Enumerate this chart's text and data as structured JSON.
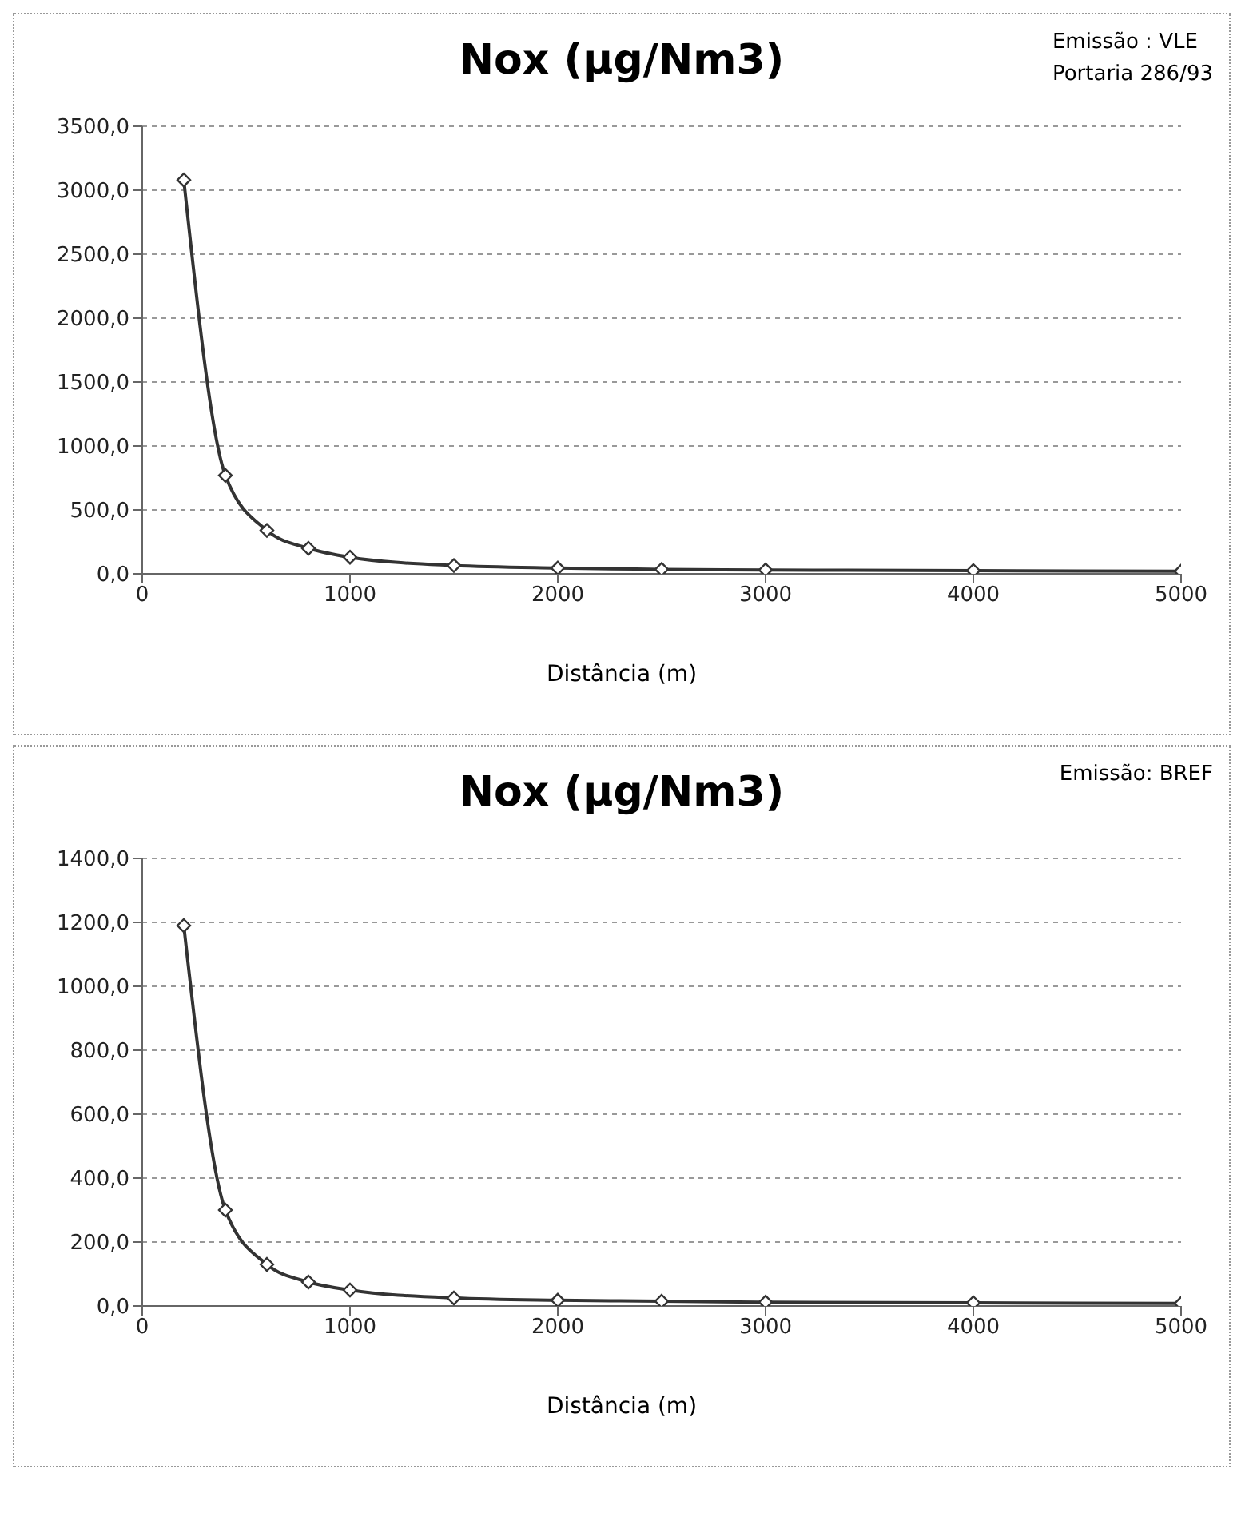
{
  "chart_data": [
    {
      "type": "line",
      "title": "Nox (µg/Nm3)",
      "annotations": [
        "Emissão : VLE",
        "Portaria 286/93"
      ],
      "xlabel": "Distância (m)",
      "x": [
        200,
        400,
        600,
        800,
        1000,
        1500,
        2000,
        2500,
        3000,
        4000,
        5000
      ],
      "series": [
        {
          "color": "#333333",
          "values": [
            3080,
            770,
            340,
            200,
            130,
            65,
            45,
            35,
            30,
            25,
            20
          ]
        }
      ],
      "xlim": [
        0,
        5000
      ],
      "xticks": [
        0,
        1000,
        2000,
        3000,
        4000,
        5000
      ],
      "ylim": [
        0,
        3500
      ],
      "yticks": [
        {
          "value": 0,
          "label": "0,0"
        },
        {
          "value": 500,
          "label": "500,0"
        },
        {
          "value": 1000,
          "label": "1000,0"
        },
        {
          "value": 1500,
          "label": "1500,0"
        },
        {
          "value": 2000,
          "label": "2000,0"
        },
        {
          "value": 2500,
          "label": "2500,0"
        },
        {
          "value": 3000,
          "label": "3000,0"
        },
        {
          "value": 3500,
          "label": "3500,0"
        }
      ],
      "grid": "y",
      "marker": "diamond",
      "line_style": "solid",
      "legend": false
    },
    {
      "type": "line",
      "title": "Nox (µg/Nm3)",
      "annotations": [
        "Emissão: BREF"
      ],
      "xlabel": "Distância (m)",
      "x": [
        200,
        400,
        600,
        800,
        1000,
        1500,
        2000,
        2500,
        3000,
        4000,
        5000
      ],
      "series": [
        {
          "color": "#333333",
          "values": [
            1190,
            300,
            130,
            75,
            50,
            25,
            18,
            15,
            12,
            10,
            8
          ]
        }
      ],
      "xlim": [
        0,
        5000
      ],
      "xticks": [
        0,
        1000,
        2000,
        3000,
        4000,
        5000
      ],
      "ylim": [
        0,
        1400
      ],
      "yticks": [
        {
          "value": 0,
          "label": "0,0"
        },
        {
          "value": 200,
          "label": "200,0"
        },
        {
          "value": 400,
          "label": "400,0"
        },
        {
          "value": 600,
          "label": "600,0"
        },
        {
          "value": 800,
          "label": "800,0"
        },
        {
          "value": 1000,
          "label": "1000,0"
        },
        {
          "value": 1200,
          "label": "1200,0"
        },
        {
          "value": 1400,
          "label": "1400,0"
        }
      ],
      "grid": "y",
      "marker": "diamond",
      "line_style": "solid",
      "legend": false
    }
  ]
}
